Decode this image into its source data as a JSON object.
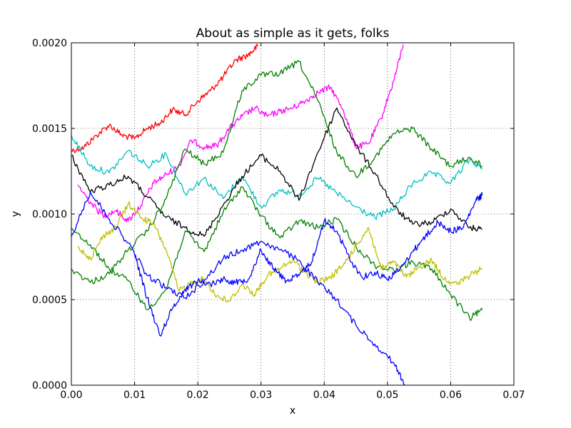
{
  "chart_data": {
    "type": "line",
    "title": "About as simple as it gets, folks",
    "xlabel": "x",
    "ylabel": "y",
    "xlim": [
      0.0,
      0.07
    ],
    "ylim": [
      0.0,
      0.002
    ],
    "grid": true,
    "x_ticks": [
      "0.00",
      "0.01",
      "0.02",
      "0.03",
      "0.04",
      "0.05",
      "0.06",
      "0.07"
    ],
    "y_ticks": [
      "0.0000",
      "0.0005",
      "0.0010",
      "0.0015",
      "0.0020"
    ],
    "series": [
      {
        "color": "#ff0000",
        "x": [
          0.0,
          0.002,
          0.004,
          0.006,
          0.008,
          0.01,
          0.012,
          0.014,
          0.016,
          0.018,
          0.02,
          0.022,
          0.024,
          0.026,
          0.028,
          0.0295
        ],
        "y": [
          0.00137,
          0.00139,
          0.00146,
          0.00152,
          0.00146,
          0.00144,
          0.0015,
          0.00153,
          0.00161,
          0.00158,
          0.00166,
          0.00172,
          0.0018,
          0.0019,
          0.00193,
          0.00198
        ]
      },
      {
        "color": "#ff00ff",
        "x": [
          0.001,
          0.003,
          0.005,
          0.007,
          0.009,
          0.011,
          0.013,
          0.015,
          0.017,
          0.019,
          0.021,
          0.023,
          0.025,
          0.027,
          0.029,
          0.031,
          0.033,
          0.035,
          0.037,
          0.039,
          0.041,
          0.043,
          0.045,
          0.047,
          0.049,
          0.051,
          0.0525
        ],
        "y": [
          0.00117,
          0.00107,
          0.00099,
          0.00102,
          0.00096,
          0.00105,
          0.00118,
          0.00123,
          0.00128,
          0.00143,
          0.00139,
          0.0014,
          0.0015,
          0.00157,
          0.00162,
          0.00157,
          0.0016,
          0.00162,
          0.00166,
          0.00171,
          0.00174,
          0.00161,
          0.00139,
          0.00141,
          0.00156,
          0.00178,
          0.00199
        ]
      },
      {
        "color": "#00bfbf",
        "x": [
          0.0,
          0.003,
          0.006,
          0.009,
          0.012,
          0.015,
          0.018,
          0.021,
          0.024,
          0.027,
          0.03,
          0.033,
          0.036,
          0.039,
          0.042,
          0.045,
          0.048,
          0.051,
          0.054,
          0.057,
          0.06,
          0.063,
          0.065
        ],
        "y": [
          0.00146,
          0.00128,
          0.00124,
          0.00137,
          0.00128,
          0.00135,
          0.00112,
          0.00121,
          0.00109,
          0.00122,
          0.00104,
          0.00114,
          0.00111,
          0.00121,
          0.00112,
          0.00104,
          0.00098,
          0.00103,
          0.00118,
          0.00124,
          0.00118,
          0.00132,
          0.00126
        ]
      },
      {
        "color": "#000000",
        "x": [
          0.0,
          0.003,
          0.006,
          0.009,
          0.012,
          0.015,
          0.018,
          0.021,
          0.024,
          0.027,
          0.03,
          0.033,
          0.036,
          0.039,
          0.042,
          0.045,
          0.048,
          0.051,
          0.054,
          0.057,
          0.06,
          0.063,
          0.065
        ],
        "y": [
          0.00134,
          0.00113,
          0.00117,
          0.00122,
          0.0011,
          0.00098,
          0.00092,
          0.00087,
          0.00105,
          0.00122,
          0.00134,
          0.00125,
          0.00108,
          0.00136,
          0.00162,
          0.0014,
          0.00124,
          0.00104,
          0.00094,
          0.00095,
          0.00103,
          0.00092,
          0.00091
        ]
      },
      {
        "color": "#008000",
        "x": [
          0.0,
          0.003,
          0.006,
          0.009,
          0.012,
          0.015,
          0.018,
          0.021,
          0.024,
          0.027,
          0.03,
          0.033,
          0.036,
          0.039,
          0.042,
          0.045,
          0.048,
          0.051,
          0.054,
          0.057,
          0.06,
          0.063,
          0.065
        ],
        "y": [
          0.00068,
          0.0006,
          0.00065,
          0.00079,
          0.0009,
          0.00109,
          0.00138,
          0.00129,
          0.00136,
          0.00172,
          0.00181,
          0.00182,
          0.00189,
          0.00166,
          0.00136,
          0.00122,
          0.00133,
          0.00147,
          0.0015,
          0.00138,
          0.00128,
          0.00133,
          0.00128
        ]
      },
      {
        "color": "#008000",
        "x": [
          0.0,
          0.003,
          0.006,
          0.009,
          0.012,
          0.015,
          0.018,
          0.021,
          0.024,
          0.027,
          0.03,
          0.033,
          0.036,
          0.039,
          0.042,
          0.045,
          0.048,
          0.051,
          0.054,
          0.057,
          0.06,
          0.063,
          0.065
        ],
        "y": [
          0.00092,
          0.00082,
          0.00068,
          0.00061,
          0.00044,
          0.00056,
          0.0009,
          0.00078,
          0.00101,
          0.00116,
          0.00099,
          0.00086,
          0.00096,
          0.00092,
          0.00097,
          0.00081,
          0.0007,
          0.00067,
          0.00072,
          0.00068,
          0.00053,
          0.00039,
          0.00044
        ]
      },
      {
        "color": "#bfbf00",
        "x": [
          0.001,
          0.003,
          0.005,
          0.007,
          0.009,
          0.011,
          0.013,
          0.015,
          0.017,
          0.019,
          0.021,
          0.023,
          0.025,
          0.027,
          0.029,
          0.031,
          0.033,
          0.035,
          0.037,
          0.039,
          0.041,
          0.043,
          0.045,
          0.047,
          0.049,
          0.051,
          0.053,
          0.055,
          0.057,
          0.059,
          0.061,
          0.063,
          0.065
        ],
        "y": [
          0.00081,
          0.00074,
          0.00087,
          0.00092,
          0.00106,
          0.00098,
          0.00094,
          0.00079,
          0.00055,
          0.0006,
          0.00062,
          0.00052,
          0.00049,
          0.00059,
          0.00053,
          0.00064,
          0.00068,
          0.00073,
          0.00066,
          0.0006,
          0.00063,
          0.0007,
          0.00081,
          0.00092,
          0.00068,
          0.00072,
          0.00063,
          0.00069,
          0.00073,
          0.00062,
          0.00059,
          0.00064,
          0.00068
        ]
      },
      {
        "color": "#0000ff",
        "x": [
          0.0,
          0.003,
          0.006,
          0.009,
          0.012,
          0.015,
          0.018,
          0.021,
          0.024,
          0.027,
          0.03,
          0.033,
          0.036,
          0.039,
          0.042,
          0.045,
          0.048,
          0.051,
          0.0528
        ],
        "y": [
          0.00087,
          0.00113,
          0.00097,
          0.00083,
          0.00064,
          0.00057,
          0.00051,
          0.00061,
          0.00074,
          0.00079,
          0.00084,
          0.00079,
          0.00073,
          0.0006,
          0.0005,
          0.00035,
          0.00024,
          0.00013,
          0.0
        ]
      },
      {
        "color": "#0000ff",
        "x": [
          0.01,
          0.012,
          0.014,
          0.016,
          0.018,
          0.02,
          0.022,
          0.024,
          0.026,
          0.028,
          0.03,
          0.032,
          0.034,
          0.036,
          0.038,
          0.04,
          0.042,
          0.044,
          0.046,
          0.048,
          0.05,
          0.052,
          0.054,
          0.056,
          0.058,
          0.06,
          0.062,
          0.064,
          0.065
        ],
        "y": [
          0.00076,
          0.00051,
          0.00029,
          0.00045,
          0.00056,
          0.00061,
          0.00059,
          0.00062,
          0.0006,
          0.00062,
          0.00079,
          0.00068,
          0.00061,
          0.00064,
          0.00072,
          0.00096,
          0.0009,
          0.00074,
          0.00063,
          0.00066,
          0.00062,
          0.00068,
          0.00078,
          0.00087,
          0.00095,
          0.0009,
          0.00092,
          0.00108,
          0.00111
        ]
      }
    ]
  }
}
